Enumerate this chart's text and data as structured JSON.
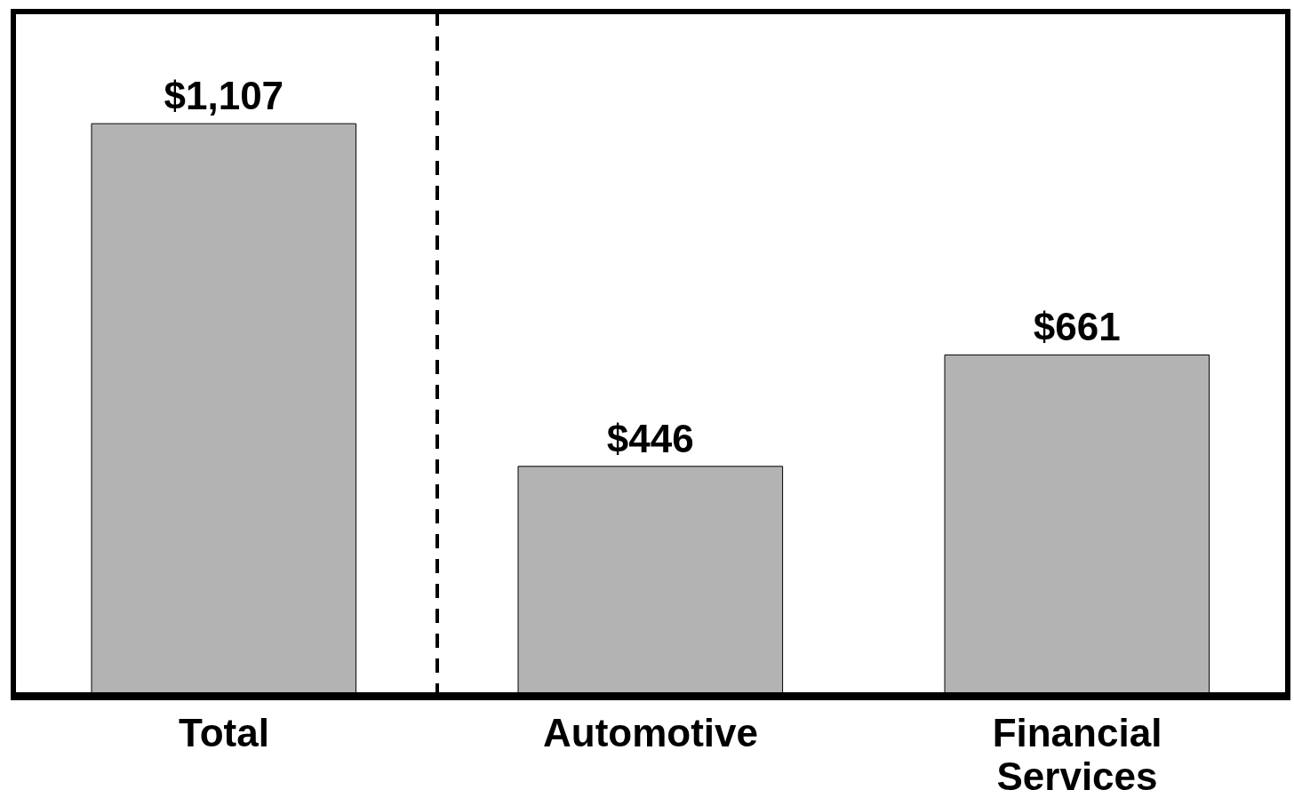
{
  "chart_data": {
    "type": "bar",
    "categories": [
      "Total",
      "Automotive",
      "Financial Services"
    ],
    "values": [
      1107,
      446,
      661
    ],
    "color": "#b3b3b3",
    "value_labels": [
      "$1,107",
      "$446",
      "$661"
    ],
    "tick_labels": "x"
  }
}
